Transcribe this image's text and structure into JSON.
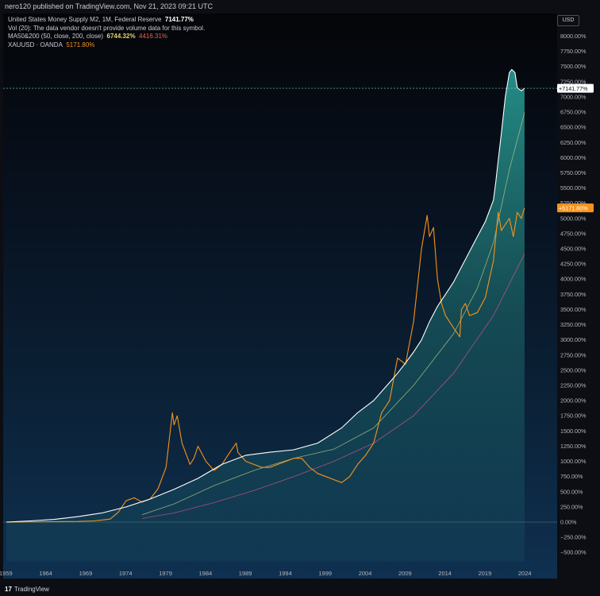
{
  "header": {
    "published": "nero120 published on TradingView.com, Nov 21, 2023 09:21 UTC"
  },
  "legend": {
    "line1_label": "United States Money Supply M2, 1M, Federal Reserve",
    "line1_value": "7141.77%",
    "line2": "Vol (20): The data vendor doesn't provide volume data for this symbol.",
    "line3_label": "MA50&200 (50, close, 200, close)",
    "line3_value1": "6744.32%",
    "line3_value2": "4416.31%",
    "line4_label": "XAUUSD · OANDA",
    "line4_value": "5171.80%"
  },
  "axis": {
    "currency": "USD"
  },
  "footer": {
    "brand": "TradingView",
    "logo": "17"
  },
  "colors": {
    "m2": "#ffffff",
    "m2_fill": "#2aa39b",
    "gold": "#f7931a",
    "ma50": "#b7c98a",
    "ma200": "#e0568a"
  },
  "chart_data": {
    "type": "line",
    "title": "United States Money Supply M2 vs XAUUSD",
    "scale": "percent",
    "ylim": [
      -650,
      8300
    ],
    "xlim": [
      1959,
      2026
    ],
    "y_ticks": [
      -500,
      -250,
      0,
      250,
      500,
      750,
      1000,
      1250,
      1500,
      1750,
      2000,
      2250,
      2500,
      2750,
      3000,
      3250,
      3500,
      3750,
      4000,
      4250,
      4500,
      4750,
      5000,
      5250,
      5500,
      5750,
      6000,
      6250,
      6500,
      6750,
      7000,
      7250,
      7500,
      7750,
      8000
    ],
    "y_tick_labels": [
      "−500.00%",
      "−250.00%",
      "0.00%",
      "250.00%",
      "500.00%",
      "750.00%",
      "1000.00%",
      "1250.00%",
      "1500.00%",
      "1750.00%",
      "2000.00%",
      "2250.00%",
      "2500.00%",
      "2750.00%",
      "3000.00%",
      "3250.00%",
      "3500.00%",
      "3750.00%",
      "4000.00%",
      "4250.00%",
      "4500.00%",
      "4750.00%",
      "5000.00%",
      "5250.00%",
      "5500.00%",
      "5750.00%",
      "6000.00%",
      "6250.00%",
      "6500.00%",
      "6750.00%",
      "7000.00%",
      "7250.00%",
      "7500.00%",
      "7750.00%",
      "8000.00%"
    ],
    "x_ticks": [
      1959,
      1964,
      1969,
      1974,
      1979,
      1984,
      1989,
      1994,
      1999,
      2004,
      2009,
      2014,
      2019,
      2024
    ],
    "x_tick_labels": [
      "1959",
      "1964",
      "1969",
      "1974",
      "1979",
      "1984",
      "1989",
      "1994",
      "1999",
      "2004",
      "2009",
      "2014",
      "2019",
      "2024"
    ],
    "price_labels": [
      {
        "series": "m2",
        "value": 7141.77,
        "text": "+7141.77%"
      },
      {
        "series": "gold",
        "value": 5171.8,
        "text": "+5171.80%"
      }
    ],
    "series": [
      {
        "name": "United States Money Supply M2",
        "key": "m2",
        "x": [
          1959,
          1962,
          1965,
          1968,
          1971,
          1974,
          1977,
          1980,
          1983,
          1986,
          1989,
          1992,
          1995,
          1998,
          2001,
          2003,
          2005,
          2007,
          2008,
          2009,
          2010,
          2011,
          2012,
          2013,
          2014,
          2015,
          2016,
          2017,
          2018,
          2019,
          2020,
          2020.3,
          2020.6,
          2021,
          2021.5,
          2022,
          2022.3,
          2022.7,
          2023,
          2023.5,
          2023.9
        ],
        "values": [
          0,
          20,
          45,
          90,
          150,
          250,
          380,
          540,
          720,
          950,
          1100,
          1150,
          1190,
          1300,
          1550,
          1800,
          2000,
          2300,
          2450,
          2620,
          2800,
          3000,
          3300,
          3550,
          3750,
          3950,
          4200,
          4450,
          4700,
          4950,
          5300,
          5600,
          5950,
          6400,
          7000,
          7400,
          7450,
          7400,
          7150,
          7100,
          7141.77
        ]
      },
      {
        "name": "XAUUSD",
        "key": "gold",
        "x": [
          1959,
          1968,
          1970,
          1972,
          1973,
          1974,
          1975,
          1976,
          1977,
          1978,
          1979,
          1979.8,
          1980,
          1980.4,
          1981,
          1982,
          1982.5,
          1983,
          1984,
          1985,
          1986,
          1987,
          1987.8,
          1988,
          1989,
          1990,
          1991,
          1992,
          1993,
          1994,
          1995,
          1996,
          1997,
          1998,
          1999,
          2000,
          2001,
          2002,
          2003,
          2004,
          2005,
          2006,
          2007,
          2008,
          2009,
          2010,
          2011,
          2011.7,
          2012,
          2012.5,
          2013,
          2013.5,
          2014,
          2015,
          2015.8,
          2016,
          2016.5,
          2017,
          2018,
          2019,
          2019.5,
          2020,
          2020.6,
          2021,
          2021.5,
          2022,
          2022.5,
          2023,
          2023.5,
          2023.9
        ],
        "values": [
          0,
          10,
          20,
          50,
          160,
          350,
          400,
          330,
          380,
          550,
          900,
          1800,
          1600,
          1750,
          1300,
          950,
          1050,
          1250,
          1000,
          850,
          950,
          1150,
          1300,
          1150,
          1000,
          950,
          900,
          900,
          950,
          1000,
          1050,
          1050,
          900,
          800,
          750,
          700,
          650,
          750,
          950,
          1100,
          1300,
          1800,
          2000,
          2700,
          2600,
          3300,
          4500,
          5050,
          4700,
          4850,
          4000,
          3600,
          3400,
          3200,
          3050,
          3500,
          3600,
          3400,
          3450,
          3700,
          4000,
          4300,
          5100,
          4800,
          4900,
          5000,
          4700,
          5100,
          5000,
          5171.8
        ]
      },
      {
        "name": "MA50",
        "key": "ma50",
        "x": [
          1976,
          1980,
          1985,
          1990,
          1995,
          2000,
          2005,
          2010,
          2015,
          2018,
          2020,
          2022,
          2023.9
        ],
        "values": [
          120,
          300,
          600,
          850,
          1050,
          1200,
          1550,
          2250,
          3100,
          3850,
          4600,
          5800,
          6744.32
        ]
      },
      {
        "name": "MA200",
        "key": "ma200",
        "x": [
          1976,
          1980,
          1985,
          1990,
          1995,
          2000,
          2005,
          2010,
          2015,
          2020,
          2023.9
        ],
        "values": [
          60,
          150,
          320,
          520,
          750,
          1000,
          1300,
          1750,
          2450,
          3400,
          4416.31
        ]
      }
    ]
  }
}
